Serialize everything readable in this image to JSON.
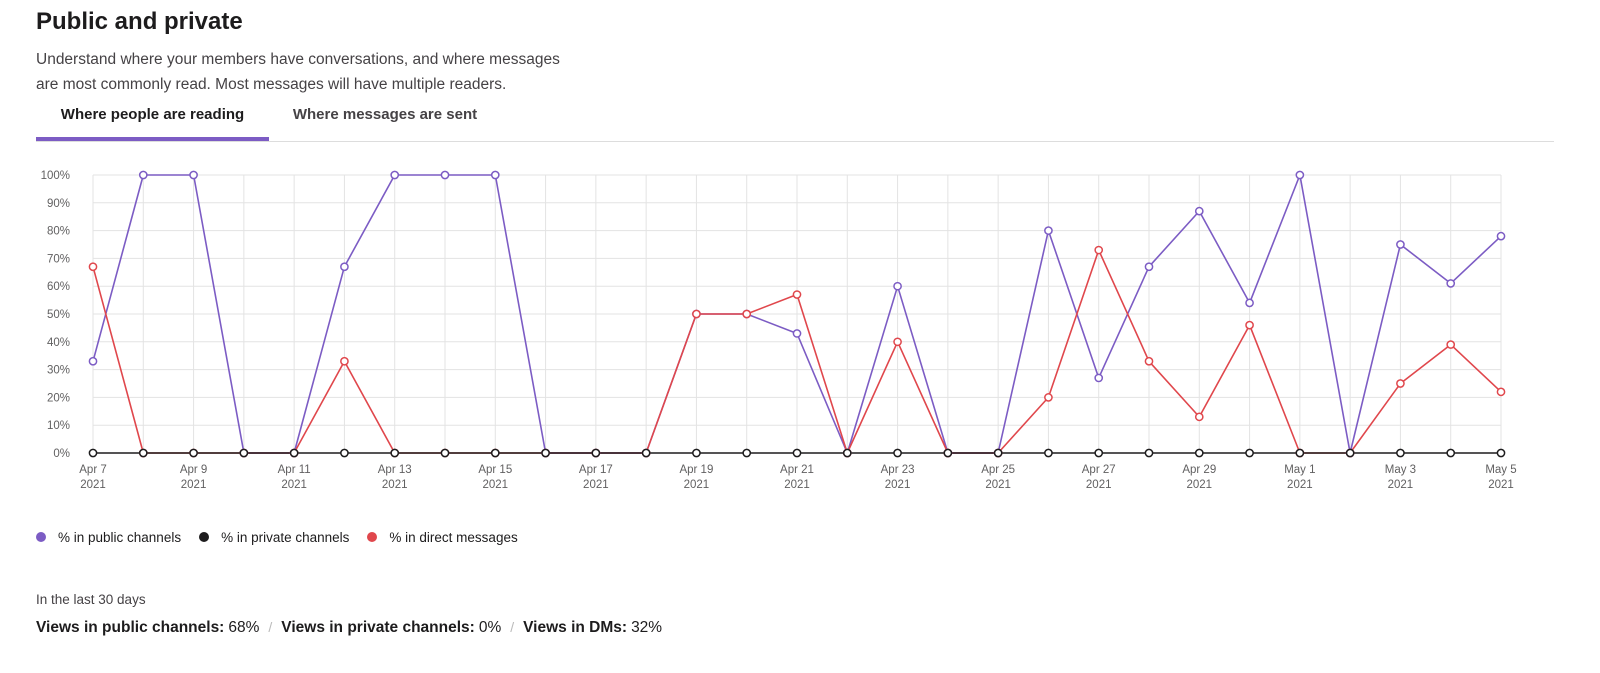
{
  "header": {
    "title": "Public and private",
    "description_line1": "Understand where your members have conversations, and where messages",
    "description_line2": "are most commonly read. Most messages will have multiple readers."
  },
  "tabs": [
    {
      "label": "Where people are reading",
      "active": true
    },
    {
      "label": "Where messages are sent",
      "active": false
    }
  ],
  "chart_data": {
    "type": "line",
    "x": [
      "2021-04-07",
      "2021-04-08",
      "2021-04-09",
      "2021-04-10",
      "2021-04-11",
      "2021-04-12",
      "2021-04-13",
      "2021-04-14",
      "2021-04-15",
      "2021-04-16",
      "2021-04-17",
      "2021-04-18",
      "2021-04-19",
      "2021-04-20",
      "2021-04-21",
      "2021-04-22",
      "2021-04-23",
      "2021-04-24",
      "2021-04-25",
      "2021-04-26",
      "2021-04-27",
      "2021-04-28",
      "2021-04-29",
      "2021-04-30",
      "2021-05-01",
      "2021-05-02",
      "2021-05-03",
      "2021-05-04",
      "2021-05-05"
    ],
    "x_tick_labels": [
      {
        "line1": "Apr 7",
        "line2": "2021"
      },
      {
        "line1": "",
        "line2": ""
      },
      {
        "line1": "Apr 9",
        "line2": "2021"
      },
      {
        "line1": "",
        "line2": ""
      },
      {
        "line1": "Apr 11",
        "line2": "2021"
      },
      {
        "line1": "",
        "line2": ""
      },
      {
        "line1": "Apr 13",
        "line2": "2021"
      },
      {
        "line1": "",
        "line2": ""
      },
      {
        "line1": "Apr 15",
        "line2": "2021"
      },
      {
        "line1": "",
        "line2": ""
      },
      {
        "line1": "Apr 17",
        "line2": "2021"
      },
      {
        "line1": "",
        "line2": ""
      },
      {
        "line1": "Apr 19",
        "line2": "2021"
      },
      {
        "line1": "",
        "line2": ""
      },
      {
        "line1": "Apr 21",
        "line2": "2021"
      },
      {
        "line1": "",
        "line2": ""
      },
      {
        "line1": "Apr 23",
        "line2": "2021"
      },
      {
        "line1": "",
        "line2": ""
      },
      {
        "line1": "Apr 25",
        "line2": "2021"
      },
      {
        "line1": "",
        "line2": ""
      },
      {
        "line1": "Apr 27",
        "line2": "2021"
      },
      {
        "line1": "",
        "line2": ""
      },
      {
        "line1": "Apr 29",
        "line2": "2021"
      },
      {
        "line1": "",
        "line2": ""
      },
      {
        "line1": "May 1",
        "line2": "2021"
      },
      {
        "line1": "",
        "line2": ""
      },
      {
        "line1": "May 3",
        "line2": "2021"
      },
      {
        "line1": "",
        "line2": ""
      },
      {
        "line1": "May 5",
        "line2": "2021"
      }
    ],
    "y_ticks": [
      0,
      10,
      20,
      30,
      40,
      50,
      60,
      70,
      80,
      90,
      100
    ],
    "y_tick_labels": [
      "0%",
      "10%",
      "20%",
      "30%",
      "40%",
      "50%",
      "60%",
      "70%",
      "80%",
      "90%",
      "100%"
    ],
    "ylim": [
      0,
      100
    ],
    "grid": true,
    "legend_position": "bottom-left",
    "series": [
      {
        "name": "% in public channels",
        "color": "#7c5cc4",
        "values": [
          33,
          100,
          100,
          0,
          0,
          67,
          100,
          100,
          100,
          0,
          0,
          0,
          50,
          50,
          43,
          0,
          60,
          0,
          0,
          80,
          27,
          67,
          87,
          54,
          100,
          0,
          75,
          61,
          78
        ]
      },
      {
        "name": "% in private channels",
        "color": "#1d1c1d",
        "values": [
          0,
          0,
          0,
          0,
          0,
          0,
          0,
          0,
          0,
          0,
          0,
          0,
          0,
          0,
          0,
          0,
          0,
          0,
          0,
          0,
          0,
          0,
          0,
          0,
          0,
          0,
          0,
          0,
          0
        ]
      },
      {
        "name": "% in direct messages",
        "color": "#e0474c",
        "values": [
          67,
          0,
          0,
          0,
          0,
          33,
          0,
          0,
          0,
          0,
          0,
          0,
          50,
          50,
          57,
          0,
          40,
          0,
          0,
          20,
          73,
          33,
          13,
          46,
          0,
          0,
          25,
          39,
          22
        ]
      }
    ]
  },
  "footer": {
    "period": "In the last 30 days",
    "stats": [
      {
        "label": "Views in public channels:",
        "value": "68%"
      },
      {
        "label": "Views in private channels:",
        "value": "0%"
      },
      {
        "label": "Views in DMs:",
        "value": "32%"
      }
    ],
    "separator": "/"
  }
}
